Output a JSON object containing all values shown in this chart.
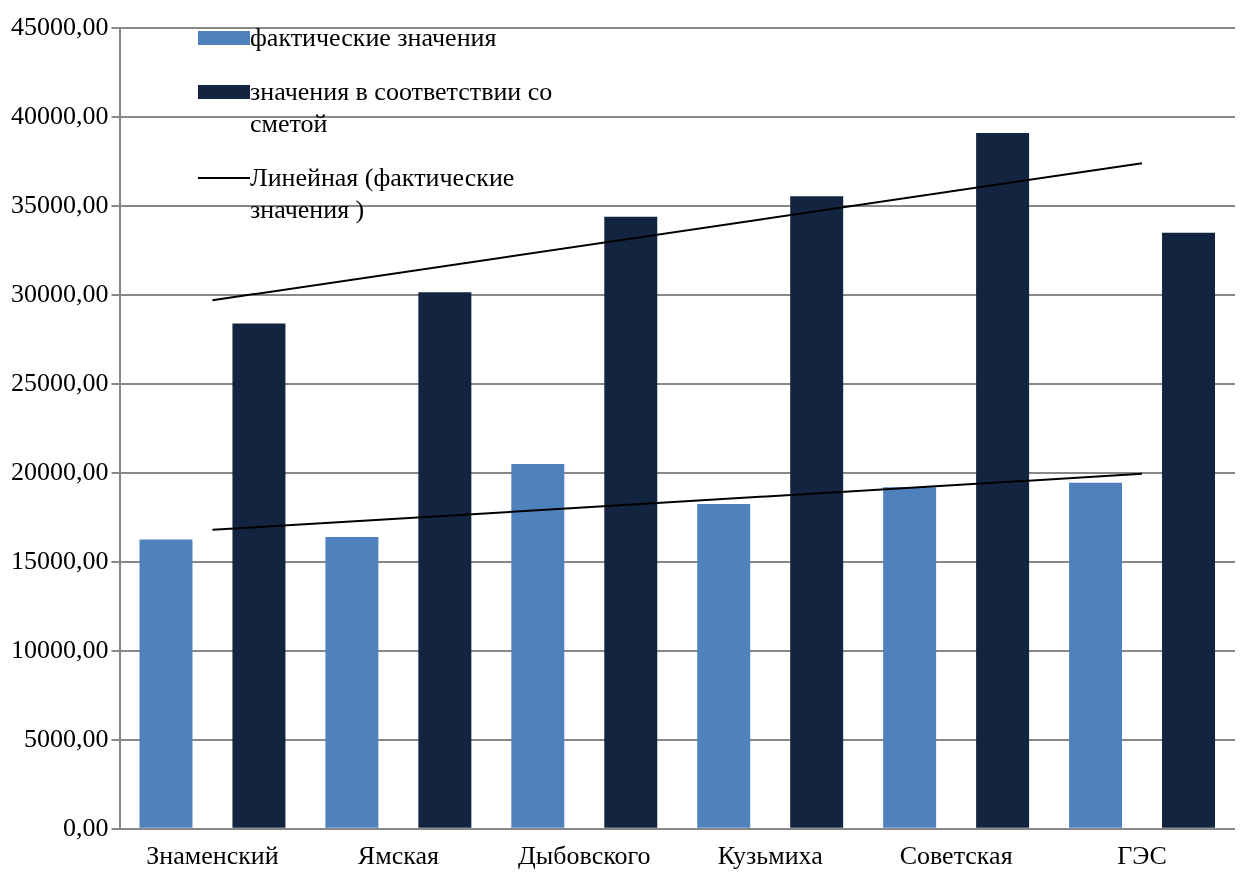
{
  "chart_data": {
    "type": "bar",
    "categories": [
      "Знаменский",
      "Ямская",
      "Дыбовского",
      "Кузьмиха",
      "Советская",
      "ГЭС"
    ],
    "series": [
      {
        "name": "фактические значения",
        "color": "#4f81bd",
        "values": [
          16250,
          16400,
          20500,
          18250,
          19200,
          19450
        ]
      },
      {
        "name": "значения в соответствии со сметой",
        "color": "#12243f",
        "values": [
          28400,
          30150,
          34400,
          35550,
          39100,
          33500
        ]
      },
      {
        "name": "Линейная (фактические значения )",
        "type": "line",
        "color": "#000000",
        "x": [
          "Знаменский",
          "ГЭС"
        ],
        "values": [
          16800,
          19950
        ]
      },
      {
        "type": "line",
        "color": "#000000",
        "x": [
          "Знаменский",
          "ГЭС"
        ],
        "values": [
          29700,
          37400
        ]
      }
    ],
    "ylim": [
      0,
      45000
    ],
    "yticks": [
      {
        "value": 0,
        "label": "0,00"
      },
      {
        "value": 5000,
        "label": "5000,00"
      },
      {
        "value": 10000,
        "label": "10000,00"
      },
      {
        "value": 15000,
        "label": "15000,00"
      },
      {
        "value": 20000,
        "label": "20000,00"
      },
      {
        "value": 25000,
        "label": "25000,00"
      },
      {
        "value": 30000,
        "label": "30000,00"
      },
      {
        "value": 35000,
        "label": "35000,00"
      },
      {
        "value": 40000,
        "label": "40000,00"
      },
      {
        "value": 45000,
        "label": "45000,00"
      }
    ],
    "grid": "y",
    "legend": "top left",
    "marker": "none"
  }
}
